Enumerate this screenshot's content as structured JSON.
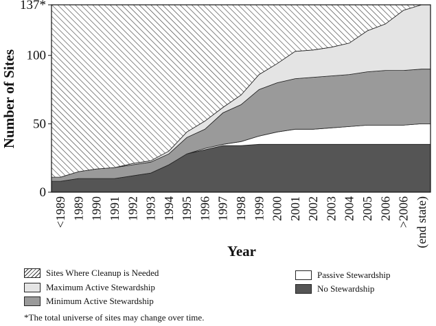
{
  "chart_data": {
    "type": "area",
    "stacked": true,
    "xlabel": "Year",
    "ylabel": "Number of Sites",
    "categories": [
      "<1989",
      "1989",
      "1990",
      "1991",
      "1992",
      "1993",
      "1994",
      "1995",
      "1996",
      "1997",
      "1998",
      "1999",
      "2000",
      "2001",
      "2002",
      "2003",
      "2004",
      "2005",
      "2006",
      ">2006",
      "(end state)"
    ],
    "ylim": [
      0,
      137
    ],
    "yticks": [
      {
        "value": 0,
        "label": "0"
      },
      {
        "value": 50,
        "label": "50"
      },
      {
        "value": 100,
        "label": "100"
      },
      {
        "value": 137,
        "label": "137*"
      }
    ],
    "series": [
      {
        "name": "No Stewardship",
        "fill": "#555555",
        "values": [
          8,
          10,
          10,
          10,
          12,
          14,
          20,
          28,
          31,
          34,
          34,
          35,
          35,
          35,
          35,
          35,
          35,
          35,
          35,
          35,
          35
        ]
      },
      {
        "name": "Passive Stewardship",
        "fill": "#ffffff",
        "values": [
          0,
          0,
          0,
          0,
          0,
          0,
          0,
          0,
          1,
          1,
          3,
          6,
          9,
          11,
          11,
          12,
          13,
          14,
          14,
          14,
          15
        ]
      },
      {
        "name": "Minimum Active Stewardship",
        "fill": "#9a9a9a",
        "values": [
          3,
          5,
          7,
          8,
          8,
          8,
          8,
          12,
          14,
          23,
          27,
          34,
          36,
          37,
          38,
          38,
          38,
          39,
          40,
          40,
          40
        ]
      },
      {
        "name": "Maximum Active Stewardship",
        "fill": "#e4e4e4",
        "values": [
          0,
          0,
          0,
          0,
          1,
          1,
          2,
          4,
          6,
          4,
          7,
          11,
          14,
          20,
          20,
          21,
          23,
          30,
          34,
          44,
          47
        ]
      },
      {
        "name": "Sites Where Cleanup is Needed",
        "fill": "hatch",
        "values": [
          126,
          122,
          120,
          119,
          116,
          114,
          107,
          93,
          85,
          75,
          66,
          51,
          43,
          34,
          33,
          31,
          28,
          19,
          14,
          4,
          0
        ]
      }
    ],
    "legend": {
      "placement": "bottom",
      "left": [
        "Sites Where Cleanup is Needed",
        "Maximum Active Stewardship",
        "Minimum Active Stewardship"
      ],
      "right": [
        "Passive Stewardship",
        "No Stewardship"
      ]
    },
    "footnote": "*The total universe of sites may change over time."
  }
}
